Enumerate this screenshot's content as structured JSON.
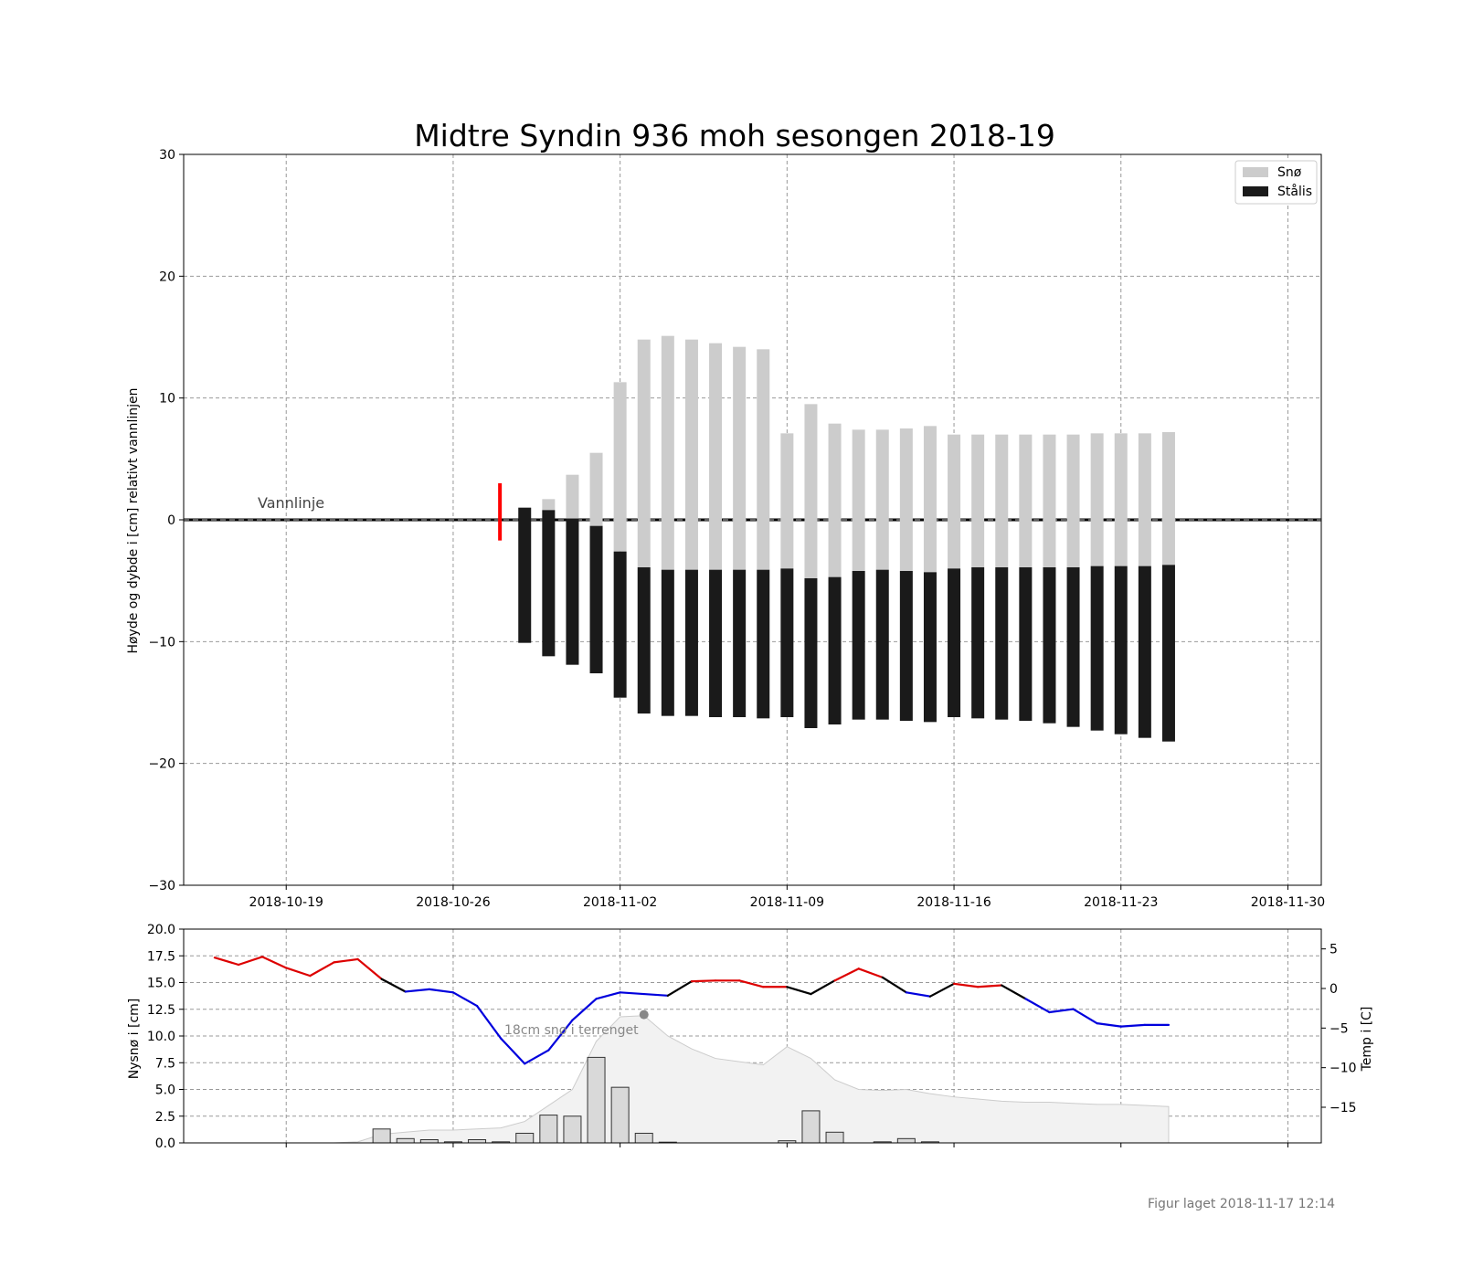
{
  "chart_data": [
    {
      "type": "bar",
      "title": "Midtre Syndin 936 moh sesongen 2018-19",
      "ylabel": "Høyde og dybde i [cm] relativt vannlinjen",
      "xlabel": "",
      "ylim": [
        -30,
        30
      ],
      "yticks": [
        "30",
        "20",
        "10",
        "0",
        "−10",
        "−20",
        "−30"
      ],
      "ytick_values": [
        30,
        20,
        10,
        0,
        -10,
        -20,
        -30
      ],
      "xlim": [
        "2018-10-14.7",
        "2018-12-01.4"
      ],
      "xticks": [
        "2018-10-19",
        "2018-10-26",
        "2018-11-02",
        "2018-11-09",
        "2018-11-16",
        "2018-11-23",
        "2018-11-30"
      ],
      "grid": true,
      "legend": {
        "placement": "top-right",
        "entries": [
          {
            "label": "Snø",
            "color": "#cccccc"
          },
          {
            "label": "Stålis",
            "color": "#1a1a1a"
          }
        ]
      },
      "annotations": {
        "waterline": "Vannlinje"
      },
      "waterline_marker": {
        "date": "2018-10-28",
        "top": 3.0,
        "bottom": -1.7,
        "color": "#ff0000"
      },
      "dates": [
        "2018-10-29",
        "2018-10-30",
        "2018-10-31",
        "2018-11-01",
        "2018-11-02",
        "2018-11-03",
        "2018-11-04",
        "2018-11-05",
        "2018-11-06",
        "2018-11-07",
        "2018-11-08",
        "2018-11-09",
        "2018-11-10",
        "2018-11-11",
        "2018-11-12",
        "2018-11-13",
        "2018-11-14",
        "2018-11-15",
        "2018-11-16",
        "2018-11-17",
        "2018-11-18",
        "2018-11-19",
        "2018-11-20",
        "2018-11-21",
        "2018-11-22",
        "2018-11-23",
        "2018-11-24",
        "2018-11-25"
      ],
      "series": [
        {
          "name": "Stålis",
          "color": "#1a1a1a",
          "top": [
            1.0,
            0.8,
            0.1,
            -0.5,
            -2.6,
            -3.9,
            -4.1,
            -4.1,
            -4.1,
            -4.1,
            -4.1,
            -4.0,
            -4.8,
            -4.7,
            -4.2,
            -4.1,
            -4.2,
            -4.3,
            -4.0,
            -3.9,
            -3.9,
            -3.9,
            -3.9,
            -3.9,
            -3.8,
            -3.8,
            -3.8,
            -3.7
          ],
          "bottom": [
            -10.1,
            -11.2,
            -11.9,
            -12.6,
            -14.6,
            -15.9,
            -16.1,
            -16.1,
            -16.2,
            -16.2,
            -16.3,
            -16.2,
            -17.1,
            -16.8,
            -16.4,
            -16.4,
            -16.5,
            -16.6,
            -16.2,
            -16.3,
            -16.4,
            -16.5,
            -16.7,
            -17.0,
            -17.3,
            -17.6,
            -17.9,
            -18.2
          ]
        },
        {
          "name": "Snø",
          "color": "#cccccc",
          "top": [
            1.0,
            1.7,
            3.7,
            5.5,
            11.3,
            14.8,
            15.1,
            14.8,
            14.5,
            14.2,
            14.0,
            7.1,
            9.5,
            7.9,
            7.4,
            7.4,
            7.5,
            7.7,
            7.0,
            7.0,
            7.0,
            7.0,
            7.0,
            7.0,
            7.1,
            7.1,
            7.1,
            7.2
          ],
          "bottom": [
            1.0,
            0.8,
            0.1,
            -0.5,
            -2.6,
            -3.9,
            -4.1,
            -4.1,
            -4.1,
            -4.1,
            -4.1,
            -4.0,
            -4.8,
            -4.7,
            -4.2,
            -4.1,
            -4.2,
            -4.3,
            -4.0,
            -3.9,
            -3.9,
            -3.9,
            -3.9,
            -3.9,
            -3.8,
            -3.8,
            -3.8,
            -3.7
          ]
        }
      ]
    },
    {
      "type": "bar",
      "ylabel": "Nysnø i [cm]",
      "y2label": "Temp i [C]",
      "ylim": [
        0,
        20
      ],
      "yticks": [
        "0.0",
        "2.5",
        "5.0",
        "7.5",
        "10.0",
        "12.5",
        "15.0",
        "17.5",
        "20.0"
      ],
      "ytick_values": [
        0,
        2.5,
        5,
        7.5,
        10,
        12.5,
        15,
        17.5,
        20
      ],
      "y2lim": [
        -19.5,
        7.5
      ],
      "y2ticks": [
        "5",
        "0",
        "−5",
        "−10",
        "−15"
      ],
      "y2tick_values": [
        5,
        0,
        -5,
        -10,
        -15
      ],
      "grid": true,
      "annotation": {
        "text": "18cm snø i terrenget",
        "point_date": "2018-11-03",
        "point_value": 12.0
      },
      "new_snow": {
        "name": "Nysnø",
        "dates": [
          "2018-10-23",
          "2018-10-24",
          "2018-10-25",
          "2018-10-26",
          "2018-10-27",
          "2018-10-28",
          "2018-10-29",
          "2018-10-30",
          "2018-10-31",
          "2018-11-01",
          "2018-11-02",
          "2018-11-03",
          "2018-11-04",
          "2018-11-09",
          "2018-11-10",
          "2018-11-11",
          "2018-11-13",
          "2018-11-14",
          "2018-11-15"
        ],
        "values": [
          1.3,
          0.4,
          0.3,
          0.1,
          0.3,
          0.1,
          0.9,
          2.6,
          2.5,
          8.0,
          5.2,
          0.9,
          0.0,
          0.2,
          3.0,
          1.0,
          0.1,
          0.4,
          0.1
        ]
      },
      "terrain_snow": {
        "name": "Snø i terrenget",
        "dates": [
          "2018-10-21",
          "2018-10-22",
          "2018-10-23",
          "2018-10-24",
          "2018-10-25",
          "2018-10-26",
          "2018-10-27",
          "2018-10-28",
          "2018-10-29",
          "2018-10-30",
          "2018-10-31",
          "2018-11-01",
          "2018-11-02",
          "2018-11-03",
          "2018-11-04",
          "2018-11-05",
          "2018-11-06",
          "2018-11-07",
          "2018-11-08",
          "2018-11-09",
          "2018-11-10",
          "2018-11-11",
          "2018-11-12",
          "2018-11-13",
          "2018-11-14",
          "2018-11-15",
          "2018-11-16",
          "2018-11-17",
          "2018-11-18",
          "2018-11-19",
          "2018-11-20",
          "2018-11-21",
          "2018-11-22",
          "2018-11-23",
          "2018-11-24",
          "2018-11-25"
        ],
        "values": [
          0.0,
          0.1,
          0.8,
          1.0,
          1.2,
          1.2,
          1.3,
          1.4,
          2.0,
          3.5,
          5.0,
          9.5,
          11.8,
          11.9,
          10.0,
          8.8,
          7.9,
          7.6,
          7.3,
          9.0,
          7.9,
          5.9,
          5.0,
          4.9,
          5.0,
          4.6,
          4.3,
          4.1,
          3.9,
          3.8,
          3.8,
          3.7,
          3.6,
          3.6,
          3.5,
          3.4
        ]
      },
      "temperature": {
        "name": "Temp",
        "dates": [
          "2018-10-16",
          "2018-10-17",
          "2018-10-18",
          "2018-10-19",
          "2018-10-20",
          "2018-10-21",
          "2018-10-22",
          "2018-10-23",
          "2018-10-24",
          "2018-10-25",
          "2018-10-26",
          "2018-10-27",
          "2018-10-28",
          "2018-10-29",
          "2018-10-30",
          "2018-10-31",
          "2018-11-01",
          "2018-11-02",
          "2018-11-03",
          "2018-11-04",
          "2018-11-05",
          "2018-11-06",
          "2018-11-07",
          "2018-11-08",
          "2018-11-09",
          "2018-11-10",
          "2018-11-11",
          "2018-11-12",
          "2018-11-13",
          "2018-11-14",
          "2018-11-15",
          "2018-11-16",
          "2018-11-17",
          "2018-11-18",
          "2018-11-19",
          "2018-11-20",
          "2018-11-21",
          "2018-11-22",
          "2018-11-23",
          "2018-11-24",
          "2018-11-25"
        ],
        "values": [
          3.9,
          3.0,
          4.0,
          2.6,
          1.6,
          3.3,
          3.7,
          1.2,
          -0.4,
          -0.1,
          -0.5,
          -2.2,
          -6.3,
          -9.5,
          -7.8,
          -4.0,
          -1.3,
          -0.5,
          -0.7,
          -0.9,
          0.9,
          1.0,
          1.0,
          0.2,
          0.2,
          -0.7,
          1.0,
          2.5,
          1.4,
          -0.5,
          -1.0,
          0.6,
          0.2,
          0.4,
          -1.3,
          -3.0,
          -2.6,
          -4.4,
          -4.8,
          -4.6,
          -4.6
        ],
        "colors": {
          "warm": "#dd0000",
          "neutral": "#000000",
          "cold": "#0000dd"
        }
      }
    }
  ],
  "footer": {
    "created": "Figur laget 2018-11-17 12:14"
  }
}
